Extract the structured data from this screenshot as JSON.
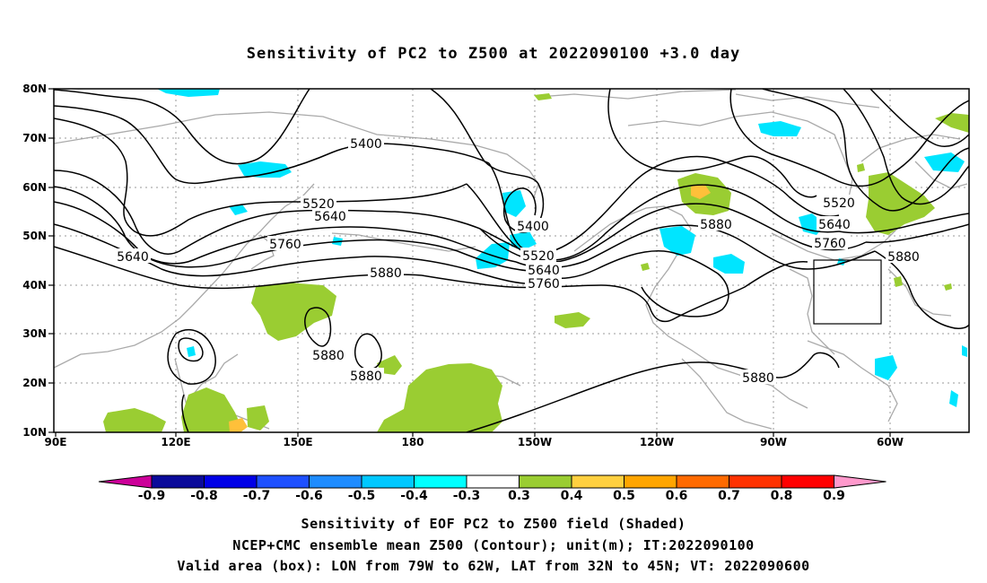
{
  "title": "Sensitivity of PC2 to Z500 at 2022090100 +3.0 day",
  "map": {
    "lon_labels": [
      "90E",
      "120E",
      "150E",
      "180",
      "150W",
      "120W",
      "90W",
      "60W"
    ],
    "lat_labels": [
      "80N",
      "70N",
      "60N",
      "50N",
      "40N",
      "30N",
      "20N",
      "10N"
    ],
    "contour_labels": [
      {
        "text": "5400"
      },
      {
        "text": "5520"
      },
      {
        "text": "5640"
      },
      {
        "text": "5640"
      },
      {
        "text": "5760"
      },
      {
        "text": "5880"
      },
      {
        "text": "5880"
      },
      {
        "text": "5880"
      },
      {
        "text": "5400"
      },
      {
        "text": "5520"
      },
      {
        "text": "5640"
      },
      {
        "text": "5760"
      },
      {
        "text": "5880"
      },
      {
        "text": "5520"
      },
      {
        "text": "5640"
      },
      {
        "text": "5760"
      },
      {
        "text": "5880"
      },
      {
        "text": "5880"
      }
    ]
  },
  "colorbar": {
    "labels": [
      "-0.9",
      "-0.8",
      "-0.7",
      "-0.6",
      "-0.5",
      "-0.4",
      "-0.3",
      "0.3",
      "0.4",
      "0.5",
      "0.6",
      "0.7",
      "0.8",
      "0.9"
    ],
    "low_end_color": "#cc0099",
    "high_end_color": "#ff99cc",
    "colors": [
      "#0a0a9a",
      "#0000e6",
      "#1e50ff",
      "#1e8cff",
      "#00c8ff",
      "#00ffff",
      "#ffffff",
      "#9acd32",
      "#ffd040",
      "#ffa500",
      "#ff6a00",
      "#ff3200",
      "#ff0000"
    ]
  },
  "captions": {
    "line1": "Sensitivity of EOF PC2 to Z500 field (Shaded)",
    "line2": "NCEP+CMC ensemble mean Z500 (Contour); unit(m); IT:2022090100",
    "line3": "Valid area (box): LON from 79W to 62W, LAT from 32N to 45N; VT: 2022090600"
  },
  "colors": {
    "contour": "#000000",
    "coastline": "#aaaaaa",
    "grid": "#999999",
    "positive_shade": "#9acd32",
    "negative_shade": "#00e5ff",
    "high_shade": "#ffa500"
  }
}
